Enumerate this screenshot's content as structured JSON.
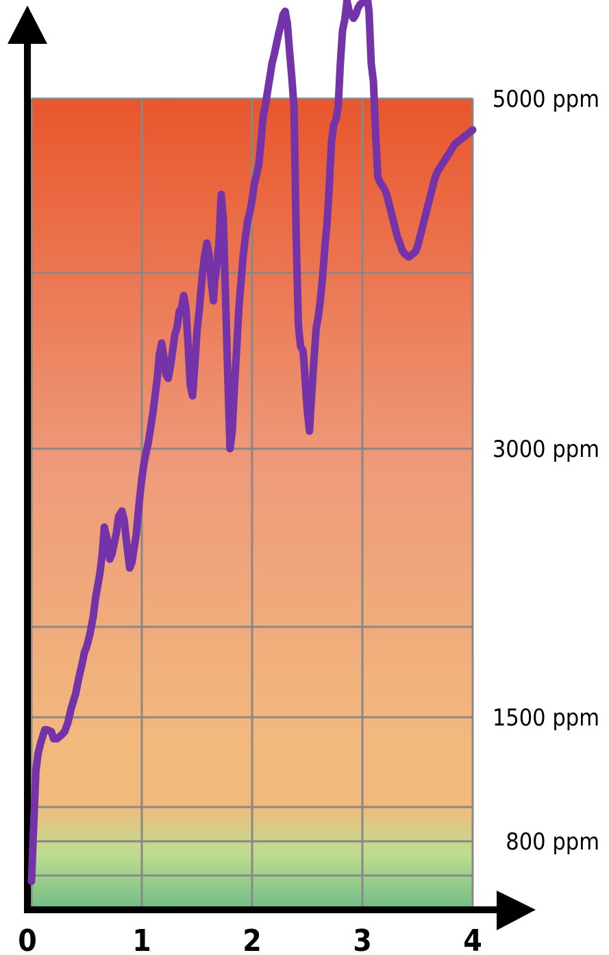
{
  "chart_data": {
    "type": "line",
    "title": "",
    "xlabel": "",
    "ylabel": "",
    "x_ticks": [
      "0",
      "1",
      "2",
      "3",
      "4"
    ],
    "y_ticks": [
      {
        "value": 5000,
        "label": "5000 ppm"
      },
      {
        "value": 3000,
        "label": "3000 ppm"
      },
      {
        "value": 1500,
        "label": "1500 ppm"
      },
      {
        "value": 800,
        "label": "800 ppm"
      }
    ],
    "xlim": [
      0,
      4
    ],
    "y_gridlines": [
      5000,
      4000,
      3000,
      2000,
      1500,
      1000,
      800,
      600
    ],
    "grid": true,
    "colors": {
      "line": "#7433a8",
      "grid": "#888888",
      "axis": "#000000",
      "gradient_top": "#e8562c",
      "gradient_mid": "#ee9a7a",
      "gradient_orange": "#f2b97c",
      "gradient_green": "#6fbd86"
    },
    "series": [
      {
        "name": "",
        "points": [
          [
            0.0,
            500
          ],
          [
            0.02,
            900
          ],
          [
            0.04,
            1200
          ],
          [
            0.06,
            1300
          ],
          [
            0.08,
            1350
          ],
          [
            0.1,
            1390
          ],
          [
            0.12,
            1430
          ],
          [
            0.14,
            1430
          ],
          [
            0.18,
            1420
          ],
          [
            0.2,
            1380
          ],
          [
            0.23,
            1380
          ],
          [
            0.27,
            1400
          ],
          [
            0.3,
            1420
          ],
          [
            0.33,
            1470
          ],
          [
            0.36,
            1550
          ],
          [
            0.4,
            1630
          ],
          [
            0.43,
            1720
          ],
          [
            0.46,
            1800
          ],
          [
            0.48,
            1860
          ],
          [
            0.5,
            1890
          ],
          [
            0.53,
            1960
          ],
          [
            0.56,
            2060
          ],
          [
            0.58,
            2160
          ],
          [
            0.6,
            2230
          ],
          [
            0.62,
            2300
          ],
          [
            0.64,
            2400
          ],
          [
            0.66,
            2560
          ],
          [
            0.69,
            2480
          ],
          [
            0.71,
            2380
          ],
          [
            0.73,
            2410
          ],
          [
            0.75,
            2470
          ],
          [
            0.77,
            2530
          ],
          [
            0.79,
            2620
          ],
          [
            0.82,
            2650
          ],
          [
            0.84,
            2600
          ],
          [
            0.87,
            2430
          ],
          [
            0.89,
            2330
          ],
          [
            0.91,
            2360
          ],
          [
            0.93,
            2440
          ],
          [
            0.95,
            2520
          ],
          [
            0.98,
            2720
          ],
          [
            1.0,
            2830
          ],
          [
            1.02,
            2920
          ],
          [
            1.04,
            2980
          ],
          [
            1.06,
            3040
          ],
          [
            1.08,
            3120
          ],
          [
            1.1,
            3200
          ],
          [
            1.12,
            3300
          ],
          [
            1.14,
            3400
          ],
          [
            1.16,
            3540
          ],
          [
            1.18,
            3600
          ],
          [
            1.2,
            3520
          ],
          [
            1.22,
            3420
          ],
          [
            1.24,
            3400
          ],
          [
            1.26,
            3470
          ],
          [
            1.28,
            3560
          ],
          [
            1.3,
            3650
          ],
          [
            1.32,
            3690
          ],
          [
            1.34,
            3780
          ],
          [
            1.36,
            3800
          ],
          [
            1.38,
            3870
          ],
          [
            1.4,
            3800
          ],
          [
            1.42,
            3590
          ],
          [
            1.44,
            3360
          ],
          [
            1.46,
            3300
          ],
          [
            1.48,
            3470
          ],
          [
            1.5,
            3670
          ],
          [
            1.52,
            3780
          ],
          [
            1.55,
            4000
          ],
          [
            1.57,
            4100
          ],
          [
            1.59,
            4170
          ],
          [
            1.61,
            4100
          ],
          [
            1.63,
            3950
          ],
          [
            1.65,
            3840
          ],
          [
            1.66,
            3950
          ],
          [
            1.68,
            4040
          ],
          [
            1.7,
            4180
          ],
          [
            1.72,
            4450
          ],
          [
            1.74,
            4300
          ],
          [
            1.76,
            3840
          ],
          [
            1.78,
            3400
          ],
          [
            1.8,
            3000
          ],
          [
            1.82,
            3100
          ],
          [
            1.84,
            3350
          ],
          [
            1.86,
            3570
          ],
          [
            1.88,
            3800
          ],
          [
            1.9,
            3950
          ],
          [
            1.92,
            4100
          ],
          [
            1.94,
            4210
          ],
          [
            1.96,
            4300
          ],
          [
            1.98,
            4350
          ],
          [
            2.0,
            4420
          ],
          [
            2.02,
            4510
          ],
          [
            2.04,
            4560
          ],
          [
            2.06,
            4620
          ],
          [
            2.08,
            4750
          ],
          [
            2.1,
            4900
          ],
          [
            2.12,
            4960
          ],
          [
            2.14,
            5040
          ],
          [
            2.16,
            5120
          ],
          [
            2.18,
            5200
          ],
          [
            2.2,
            5250
          ],
          [
            2.22,
            5310
          ],
          [
            2.24,
            5370
          ],
          [
            2.26,
            5420
          ],
          [
            2.28,
            5480
          ],
          [
            2.3,
            5500
          ],
          [
            2.32,
            5430
          ],
          [
            2.34,
            5270
          ],
          [
            2.36,
            5120
          ],
          [
            2.38,
            4950
          ],
          [
            2.39,
            4580
          ],
          [
            2.4,
            4200
          ],
          [
            2.42,
            3700
          ],
          [
            2.44,
            3580
          ],
          [
            2.46,
            3560
          ],
          [
            2.47,
            3500
          ],
          [
            2.49,
            3300
          ],
          [
            2.5,
            3220
          ],
          [
            2.52,
            3100
          ],
          [
            2.54,
            3300
          ],
          [
            2.56,
            3500
          ],
          [
            2.58,
            3680
          ],
          [
            2.6,
            3750
          ],
          [
            2.62,
            3850
          ],
          [
            2.64,
            3980
          ],
          [
            2.66,
            4150
          ],
          [
            2.68,
            4290
          ],
          [
            2.7,
            4500
          ],
          [
            2.72,
            4750
          ],
          [
            2.74,
            4850
          ],
          [
            2.76,
            4880
          ],
          [
            2.78,
            4950
          ],
          [
            2.8,
            5200
          ],
          [
            2.82,
            5390
          ],
          [
            2.84,
            5450
          ],
          [
            2.86,
            5560
          ],
          [
            2.88,
            5500
          ],
          [
            2.9,
            5480
          ],
          [
            2.92,
            5460
          ],
          [
            2.94,
            5480
          ],
          [
            2.96,
            5520
          ],
          [
            2.98,
            5540
          ],
          [
            3.0,
            5550
          ],
          [
            3.02,
            5560
          ],
          [
            3.04,
            5600
          ],
          [
            3.06,
            5500
          ],
          [
            3.08,
            5200
          ],
          [
            3.1,
            5100
          ],
          [
            3.12,
            4800
          ],
          [
            3.14,
            4550
          ],
          [
            3.16,
            4520
          ],
          [
            3.18,
            4500
          ],
          [
            3.2,
            4480
          ],
          [
            3.22,
            4450
          ],
          [
            3.24,
            4400
          ],
          [
            3.26,
            4350
          ],
          [
            3.28,
            4300
          ],
          [
            3.3,
            4250
          ],
          [
            3.32,
            4200
          ],
          [
            3.34,
            4170
          ],
          [
            3.36,
            4130
          ],
          [
            3.38,
            4110
          ],
          [
            3.4,
            4100
          ],
          [
            3.42,
            4090
          ],
          [
            3.44,
            4100
          ],
          [
            3.46,
            4110
          ],
          [
            3.48,
            4120
          ],
          [
            3.5,
            4150
          ],
          [
            3.52,
            4200
          ],
          [
            3.54,
            4250
          ],
          [
            3.56,
            4300
          ],
          [
            3.58,
            4350
          ],
          [
            3.6,
            4400
          ],
          [
            3.62,
            4450
          ],
          [
            3.64,
            4500
          ],
          [
            3.66,
            4550
          ],
          [
            3.68,
            4580
          ],
          [
            3.7,
            4600
          ],
          [
            3.72,
            4620
          ],
          [
            3.74,
            4640
          ],
          [
            3.76,
            4660
          ],
          [
            3.78,
            4680
          ],
          [
            3.8,
            4700
          ],
          [
            3.82,
            4720
          ],
          [
            3.84,
            4740
          ],
          [
            3.86,
            4750
          ],
          [
            3.88,
            4760
          ],
          [
            3.9,
            4770
          ],
          [
            3.92,
            4780
          ],
          [
            3.94,
            4790
          ],
          [
            3.96,
            4800
          ],
          [
            3.98,
            4810
          ],
          [
            4.0,
            4820
          ]
        ]
      }
    ]
  }
}
